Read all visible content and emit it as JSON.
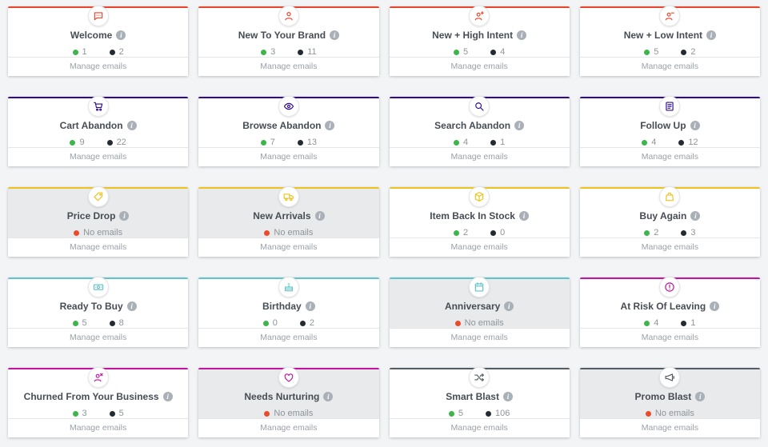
{
  "page_background": "#f3f4f6",
  "manage_emails_label": "Manage emails",
  "no_emails_label": "No emails",
  "info_icon_glyph": "i",
  "palette": {
    "active_dot": "#3cb54b",
    "inactive_dot": "#232a31",
    "no_emails_dot": "#ea4b2b",
    "card_disabled_bg": "#e9eaeb",
    "row_red": "#e8432b",
    "row_indigo": "#2f0b8e",
    "row_yellow": "#ecc31d",
    "row_teal": "#5fc3c9",
    "row_magenta": "#c313a0",
    "row_gray": "#535c63"
  },
  "cards": [
    {
      "title": "Welcome",
      "icon": "chat-icon",
      "color": "#e8432b",
      "counts": {
        "green": 1,
        "dark": 2
      }
    },
    {
      "title": "New To Your Brand",
      "icon": "user-icon",
      "color": "#e8432b",
      "counts": {
        "green": 3,
        "dark": 11
      }
    },
    {
      "title": "New + High Intent",
      "icon": "user-plus-icon",
      "color": "#e8432b",
      "counts": {
        "green": 5,
        "dark": 4
      }
    },
    {
      "title": "New + Low Intent",
      "icon": "user-minus-icon",
      "color": "#e8432b",
      "counts": {
        "green": 5,
        "dark": 2
      }
    },
    {
      "title": "Cart Abandon",
      "icon": "cart-icon",
      "color": "#2f0b8e",
      "counts": {
        "green": 9,
        "dark": 22
      }
    },
    {
      "title": "Browse Abandon",
      "icon": "eye-icon",
      "color": "#2f0b8e",
      "counts": {
        "green": 7,
        "dark": 13
      }
    },
    {
      "title": "Search Abandon",
      "icon": "search-icon",
      "color": "#2f0b8e",
      "counts": {
        "green": 4,
        "dark": 1
      }
    },
    {
      "title": "Follow Up",
      "icon": "document-icon",
      "color": "#2f0b8e",
      "counts": {
        "green": 4,
        "dark": 12
      }
    },
    {
      "title": "Price Drop",
      "icon": "tag-icon",
      "color": "#ecc31d",
      "no_emails": true
    },
    {
      "title": "New Arrivals",
      "icon": "truck-icon",
      "color": "#ecc31d",
      "no_emails": true
    },
    {
      "title": "Item Back In Stock",
      "icon": "box-icon",
      "color": "#ecc31d",
      "counts": {
        "green": 2,
        "dark": 0
      }
    },
    {
      "title": "Buy Again",
      "icon": "bag-icon",
      "color": "#ecc31d",
      "counts": {
        "green": 2,
        "dark": 3
      }
    },
    {
      "title": "Ready To Buy",
      "icon": "cash-icon",
      "color": "#5fc3c9",
      "counts": {
        "green": 5,
        "dark": 8
      }
    },
    {
      "title": "Birthday",
      "icon": "cake-icon",
      "color": "#5fc3c9",
      "counts": {
        "green": 0,
        "dark": 2
      }
    },
    {
      "title": "Anniversary",
      "icon": "calendar-icon",
      "color": "#5fc3c9",
      "no_emails": true
    },
    {
      "title": "At Risk Of Leaving",
      "icon": "alert-icon",
      "color": "#c313a0",
      "counts": {
        "green": 4,
        "dark": 1
      }
    },
    {
      "title": "Churned From Your Business",
      "icon": "user-x-icon",
      "color": "#c313a0",
      "counts": {
        "green": 3,
        "dark": 5
      }
    },
    {
      "title": "Needs Nurturing",
      "icon": "heart-icon",
      "color": "#c313a0",
      "no_emails": true
    },
    {
      "title": "Smart Blast",
      "icon": "shuffle-icon",
      "color": "#535c63",
      "counts": {
        "green": 5,
        "dark": 106
      }
    },
    {
      "title": "Promo Blast",
      "icon": "megaphone-icon",
      "color": "#535c63",
      "no_emails": true
    }
  ]
}
